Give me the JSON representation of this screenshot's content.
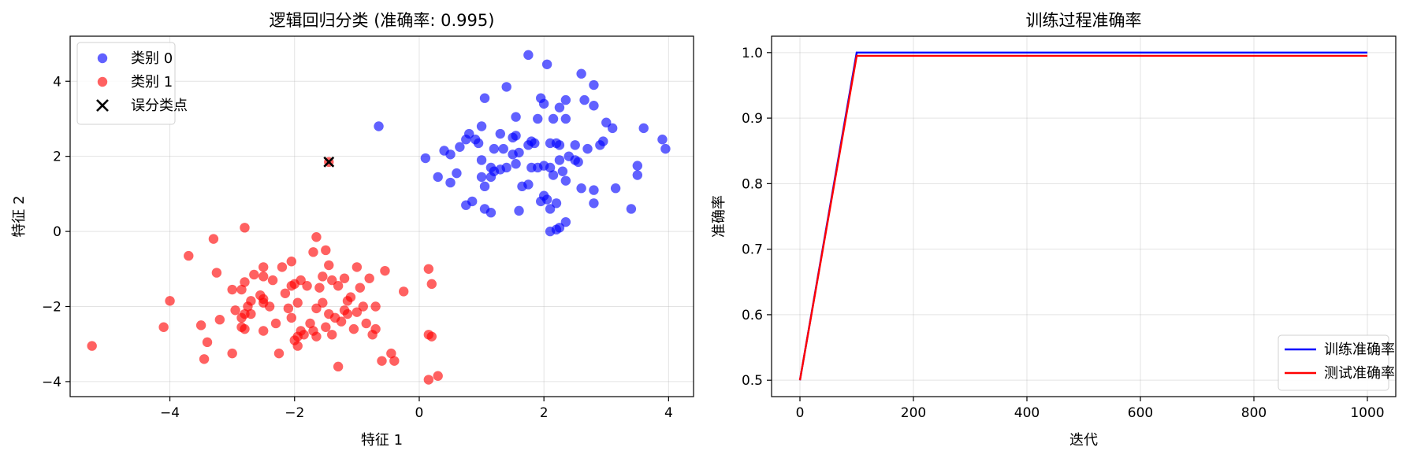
{
  "chart_data": [
    {
      "type": "scatter",
      "title": "逻辑回归分类 (准确率: 0.995)",
      "xlabel": "特征 1",
      "ylabel": "特征 2",
      "xlim": [
        -5.6,
        4.4
      ],
      "ylim": [
        -4.4,
        5.2
      ],
      "xticks": [
        -4,
        -2,
        0,
        2,
        4
      ],
      "yticks": [
        -4,
        -2,
        0,
        2,
        4
      ],
      "grid": true,
      "legend_position": "top-left",
      "series": [
        {
          "name": "类别 0",
          "color": "#0000ff",
          "marker": "circle",
          "points": [
            [
              1.75,
              4.7
            ],
            [
              2.05,
              4.45
            ],
            [
              2.6,
              4.2
            ],
            [
              2.8,
              3.9
            ],
            [
              1.4,
              3.85
            ],
            [
              1.95,
              3.55
            ],
            [
              2.35,
              3.5
            ],
            [
              2.65,
              3.5
            ],
            [
              1.05,
              3.55
            ],
            [
              2.25,
              3.3
            ],
            [
              2.8,
              3.35
            ],
            [
              2.0,
              3.4
            ],
            [
              1.55,
              3.05
            ],
            [
              1.9,
              3.0
            ],
            [
              2.15,
              3.0
            ],
            [
              2.35,
              3.0
            ],
            [
              3.0,
              2.9
            ],
            [
              3.6,
              2.75
            ],
            [
              3.1,
              2.75
            ],
            [
              1.0,
              2.8
            ],
            [
              -0.65,
              2.8
            ],
            [
              0.8,
              2.6
            ],
            [
              1.3,
              2.6
            ],
            [
              1.55,
              2.55
            ],
            [
              1.5,
              2.5
            ],
            [
              0.9,
              2.45
            ],
            [
              1.8,
              2.4
            ],
            [
              2.2,
              2.35
            ],
            [
              2.95,
              2.4
            ],
            [
              0.95,
              2.35
            ],
            [
              1.2,
              2.2
            ],
            [
              1.75,
              2.3
            ],
            [
              1.85,
              2.35
            ],
            [
              2.1,
              2.35
            ],
            [
              2.25,
              2.3
            ],
            [
              2.5,
              2.3
            ],
            [
              2.9,
              2.3
            ],
            [
              3.9,
              2.45
            ],
            [
              3.95,
              2.2
            ],
            [
              0.65,
              2.25
            ],
            [
              0.4,
              2.15
            ],
            [
              0.5,
              2.05
            ],
            [
              1.35,
              2.2
            ],
            [
              1.5,
              2.05
            ],
            [
              2.7,
              2.2
            ],
            [
              2.25,
              1.9
            ],
            [
              2.5,
              1.9
            ],
            [
              2.55,
              1.85
            ],
            [
              0.1,
              1.95
            ],
            [
              1.55,
              1.8
            ],
            [
              2.0,
              1.75
            ],
            [
              2.1,
              1.7
            ],
            [
              1.8,
              1.7
            ],
            [
              1.4,
              1.7
            ],
            [
              1.3,
              1.65
            ],
            [
              1.15,
              1.7
            ],
            [
              1.2,
              1.6
            ],
            [
              0.6,
              1.55
            ],
            [
              1.0,
              1.45
            ],
            [
              1.15,
              1.45
            ],
            [
              2.3,
              1.6
            ],
            [
              1.9,
              1.7
            ],
            [
              3.5,
              1.75
            ],
            [
              3.5,
              1.5
            ],
            [
              2.15,
              1.5
            ],
            [
              2.35,
              1.35
            ],
            [
              0.3,
              1.45
            ],
            [
              0.5,
              1.3
            ],
            [
              1.65,
              1.2
            ],
            [
              1.75,
              1.25
            ],
            [
              2.6,
              1.15
            ],
            [
              2.8,
              1.1
            ],
            [
              3.15,
              1.15
            ],
            [
              1.05,
              1.2
            ],
            [
              2.0,
              0.95
            ],
            [
              2.05,
              0.85
            ],
            [
              1.95,
              0.8
            ],
            [
              2.2,
              0.75
            ],
            [
              2.8,
              0.75
            ],
            [
              0.75,
              0.7
            ],
            [
              0.85,
              0.8
            ],
            [
              1.05,
              0.6
            ],
            [
              1.15,
              0.5
            ],
            [
              1.6,
              0.55
            ],
            [
              2.1,
              0.6
            ],
            [
              3.4,
              0.6
            ],
            [
              2.35,
              0.25
            ],
            [
              2.1,
              0.0
            ],
            [
              2.2,
              0.05
            ],
            [
              2.25,
              0.1
            ],
            [
              2.4,
              2.0
            ],
            [
              1.0,
              1.9
            ],
            [
              0.75,
              2.45
            ],
            [
              1.6,
              2.1
            ]
          ]
        },
        {
          "name": "类别 1",
          "color": "#ff0000",
          "marker": "circle",
          "points": [
            [
              -2.8,
              0.1
            ],
            [
              -1.65,
              -0.15
            ],
            [
              -3.3,
              -0.2
            ],
            [
              -1.5,
              -0.5
            ],
            [
              -1.7,
              -0.55
            ],
            [
              -3.7,
              -0.65
            ],
            [
              -2.05,
              -0.8
            ],
            [
              -1.45,
              -0.9
            ],
            [
              -2.2,
              -0.95
            ],
            [
              -2.5,
              -0.95
            ],
            [
              -1.0,
              -0.95
            ],
            [
              -3.25,
              -1.1
            ],
            [
              -0.55,
              -1.05
            ],
            [
              0.15,
              -1.0
            ],
            [
              -2.65,
              -1.15
            ],
            [
              -2.5,
              -1.2
            ],
            [
              -1.9,
              -1.3
            ],
            [
              -2.35,
              -1.3
            ],
            [
              -2.8,
              -1.35
            ],
            [
              -1.55,
              -1.2
            ],
            [
              -1.4,
              -1.3
            ],
            [
              -1.2,
              -1.25
            ],
            [
              -0.8,
              -1.25
            ],
            [
              0.2,
              -1.4
            ],
            [
              -2.05,
              -1.45
            ],
            [
              -1.8,
              -1.45
            ],
            [
              -1.6,
              -1.5
            ],
            [
              -1.3,
              -1.45
            ],
            [
              -3.0,
              -1.55
            ],
            [
              -2.85,
              -1.55
            ],
            [
              -2.15,
              -1.65
            ],
            [
              -1.1,
              -1.75
            ],
            [
              -0.25,
              -1.6
            ],
            [
              -4.0,
              -1.85
            ],
            [
              -2.7,
              -1.85
            ],
            [
              -2.5,
              -1.8
            ],
            [
              -1.95,
              -1.9
            ],
            [
              -1.15,
              -1.85
            ],
            [
              -0.9,
              -2.0
            ],
            [
              -2.75,
              -2.0
            ],
            [
              -2.5,
              -1.9
            ],
            [
              -2.1,
              -2.05
            ],
            [
              -1.65,
              -2.05
            ],
            [
              -1.2,
              -2.1
            ],
            [
              -0.7,
              -2.0
            ],
            [
              -2.95,
              -2.1
            ],
            [
              -2.8,
              -2.2
            ],
            [
              -2.7,
              -2.2
            ],
            [
              -2.05,
              -2.3
            ],
            [
              -1.45,
              -2.2
            ],
            [
              -1.15,
              -2.2
            ],
            [
              -1.0,
              -2.15
            ],
            [
              -3.2,
              -2.35
            ],
            [
              -2.85,
              -2.3
            ],
            [
              -2.3,
              -2.45
            ],
            [
              -1.75,
              -2.45
            ],
            [
              -1.35,
              -2.3
            ],
            [
              -1.25,
              -2.4
            ],
            [
              -0.85,
              -2.45
            ],
            [
              -3.5,
              -2.5
            ],
            [
              -4.1,
              -2.55
            ],
            [
              -2.85,
              -2.55
            ],
            [
              -2.8,
              -2.6
            ],
            [
              -2.5,
              -2.65
            ],
            [
              -1.9,
              -2.65
            ],
            [
              -1.7,
              -2.65
            ],
            [
              -1.05,
              -2.6
            ],
            [
              -0.7,
              -2.6
            ],
            [
              -1.95,
              -2.8
            ],
            [
              -1.65,
              -2.8
            ],
            [
              -1.4,
              -2.75
            ],
            [
              -0.75,
              -2.75
            ],
            [
              0.15,
              -2.75
            ],
            [
              0.2,
              -2.8
            ],
            [
              -3.4,
              -2.95
            ],
            [
              -2.0,
              -2.9
            ],
            [
              -1.95,
              -3.05
            ],
            [
              -5.25,
              -3.05
            ],
            [
              -3.0,
              -3.25
            ],
            [
              -2.25,
              -3.25
            ],
            [
              -0.45,
              -3.25
            ],
            [
              -3.45,
              -3.4
            ],
            [
              -0.6,
              -3.45
            ],
            [
              -0.4,
              -3.45
            ],
            [
              -1.3,
              -3.6
            ],
            [
              0.3,
              -3.85
            ],
            [
              0.15,
              -3.95
            ],
            [
              -2.55,
              -1.7
            ],
            [
              -1.55,
              -1.9
            ],
            [
              -2.0,
              -1.4
            ],
            [
              -1.85,
              -2.75
            ],
            [
              -1.5,
              -2.55
            ],
            [
              -0.95,
              -1.5
            ],
            [
              -2.4,
              -2.0
            ]
          ]
        },
        {
          "name": "误分类点",
          "color": "#000000",
          "marker": "x",
          "points": [
            [
              -1.45,
              1.85
            ]
          ]
        }
      ],
      "overlay_points": [
        {
          "x": -1.45,
          "y": 1.85,
          "color": "#ff0000"
        }
      ]
    },
    {
      "type": "line",
      "title": "训练过程准确率",
      "xlabel": "迭代",
      "ylabel": "准确率",
      "xlim": [
        -50,
        1050
      ],
      "ylim": [
        0.475,
        1.025
      ],
      "xticks": [
        0,
        200,
        400,
        600,
        800,
        1000
      ],
      "yticks": [
        0.5,
        0.6,
        0.7,
        0.8,
        0.9,
        1.0
      ],
      "grid": true,
      "legend_position": "bottom-right",
      "series": [
        {
          "name": "训练准确率",
          "color": "#0000ff",
          "x": [
            0,
            100,
            1000
          ],
          "y": [
            0.5,
            1.0,
            1.0
          ]
        },
        {
          "name": "测试准确率",
          "color": "#ff0000",
          "x": [
            0,
            100,
            1000
          ],
          "y": [
            0.5,
            0.995,
            0.995
          ]
        }
      ]
    }
  ]
}
